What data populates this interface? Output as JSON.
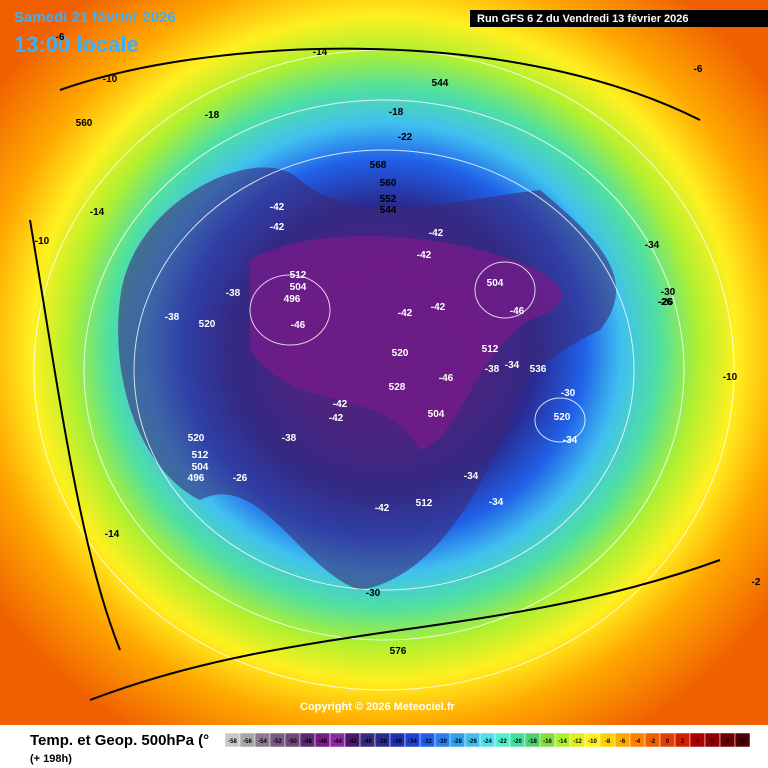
{
  "header": {
    "date": "Samedi 21 février 2026",
    "time": "13:00 locale",
    "run": "Run GFS 6 Z du Vendredi 13 février 2026"
  },
  "copyright": "Copyright © 2026 Meteociel.fr",
  "legend": {
    "title": "Temp. et Geop. 500hPa (°",
    "lead": "(+ 198h)",
    "ticks": [
      -58,
      -56,
      -54,
      -52,
      -50,
      -48,
      -46,
      -44,
      -42,
      -40,
      -38,
      -36,
      -34,
      -32,
      -30,
      -28,
      -26,
      -24,
      -22,
      -20,
      -18,
      -16,
      -14,
      -12,
      -10,
      -8,
      -6,
      -4,
      -2,
      0,
      2,
      4,
      6,
      8,
      10
    ],
    "colors": [
      "#c8c8c8",
      "#a8a8a8",
      "#8c7890",
      "#7a5a80",
      "#6e4a78",
      "#5a2a6e",
      "#7a1a8a",
      "#8a2aa0",
      "#4a1a6a",
      "#3a2a7a",
      "#2a2a90",
      "#2030b0",
      "#2040d0",
      "#2060e8",
      "#2a80f0",
      "#30a0f0",
      "#40c0f0",
      "#50e0f0",
      "#50f0d0",
      "#40e0a0",
      "#50d070",
      "#80e040",
      "#b0f030",
      "#e0f020",
      "#fff020",
      "#ffd000",
      "#ffa800",
      "#ff8000",
      "#f06000",
      "#e04000",
      "#d02000",
      "#b00000",
      "#900000",
      "#700000",
      "#500000"
    ]
  },
  "map_labels": [
    "-42",
    "-42",
    "512",
    "504",
    "496",
    "-46",
    "-38",
    "-38",
    "520",
    "-42",
    "-42",
    "-42",
    "-42",
    "504",
    "-46",
    "520",
    "512",
    "-38",
    "-34",
    "536",
    "-30",
    "520",
    "-34",
    "-46",
    "504",
    "528",
    "-42",
    "-42",
    "-38",
    "-42",
    "512",
    "-34",
    "-34",
    "520",
    "512",
    "504",
    "496",
    "-26",
    "-30",
    "-26",
    "568",
    "560",
    "552",
    "544",
    "-22",
    "-18",
    "-14",
    "-10",
    "-6",
    "-18",
    "560",
    "544",
    "-14",
    "-10",
    "-10",
    "-6",
    "-2",
    "-14",
    "576",
    "-30",
    "-26",
    "-34"
  ]
}
